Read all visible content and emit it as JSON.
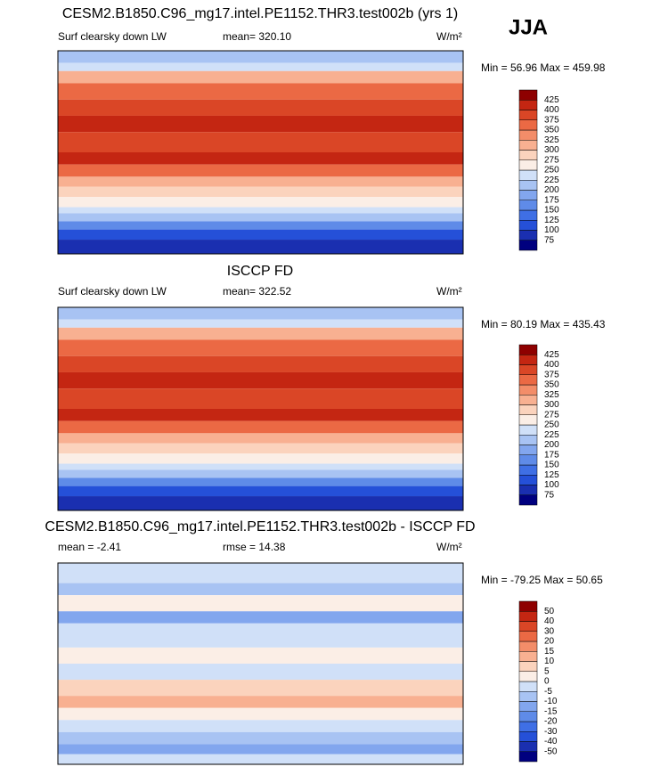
{
  "title": "CESM2.B1850.C96_mg17.intel.PE1152.THR3.test002b (yrs 1)",
  "season": "JJA",
  "panels": [
    {
      "left": "Surf clearsky down LW",
      "center": "mean= 320.10",
      "units": "W/m²",
      "minmax": "Min =  56.96 Max = 459.98",
      "levels": [
        "75",
        "100",
        "125",
        "150",
        "175",
        "200",
        "225",
        "250",
        "275",
        "300",
        "325",
        "350",
        "375",
        "400",
        "425"
      ],
      "colors": [
        "#00007f",
        "#1a2fb0",
        "#2550d8",
        "#3f6fe5",
        "#5f8be8",
        "#82a6ee",
        "#a8c3f3",
        "#d0e0f8",
        "#fbeee6",
        "#fbd3bd",
        "#f8b091",
        "#f38d69",
        "#eb6944",
        "#da4626",
        "#c42612",
        "#8e0000"
      ],
      "field": "abs"
    },
    {
      "title": "ISCCP FD",
      "left": "Surf clearsky down LW",
      "center": "mean= 322.52",
      "units": "W/m²",
      "minmax": "Min =  80.19 Max = 435.43",
      "levels": [
        "75",
        "100",
        "125",
        "150",
        "175",
        "200",
        "225",
        "250",
        "275",
        "300",
        "325",
        "350",
        "375",
        "400",
        "425"
      ],
      "colors": [
        "#00007f",
        "#1a2fb0",
        "#2550d8",
        "#3f6fe5",
        "#5f8be8",
        "#82a6ee",
        "#a8c3f3",
        "#d0e0f8",
        "#fbeee6",
        "#fbd3bd",
        "#f8b091",
        "#f38d69",
        "#eb6944",
        "#da4626",
        "#c42612",
        "#8e0000"
      ],
      "field": "abs"
    },
    {
      "title": "CESM2.B1850.C96_mg17.intel.PE1152.THR3.test002b - ISCCP FD",
      "left": "mean =  -2.41",
      "center": "rmse =  14.38",
      "units": "W/m²",
      "minmax": "Min = -79.25 Max =  50.65",
      "levels": [
        "-50",
        "-40",
        "-30",
        "-20",
        "-15",
        "-10",
        "-5",
        "0",
        "5",
        "10",
        "15",
        "20",
        "30",
        "40",
        "50"
      ],
      "colors": [
        "#00007f",
        "#1a2fb0",
        "#2550d8",
        "#3f6fe5",
        "#5f8be8",
        "#82a6ee",
        "#a8c3f3",
        "#d0e0f8",
        "#fbeee6",
        "#fbd3bd",
        "#f8b091",
        "#f38d69",
        "#eb6944",
        "#da4626",
        "#c42612",
        "#8e0000"
      ],
      "field": "diff"
    }
  ]
}
